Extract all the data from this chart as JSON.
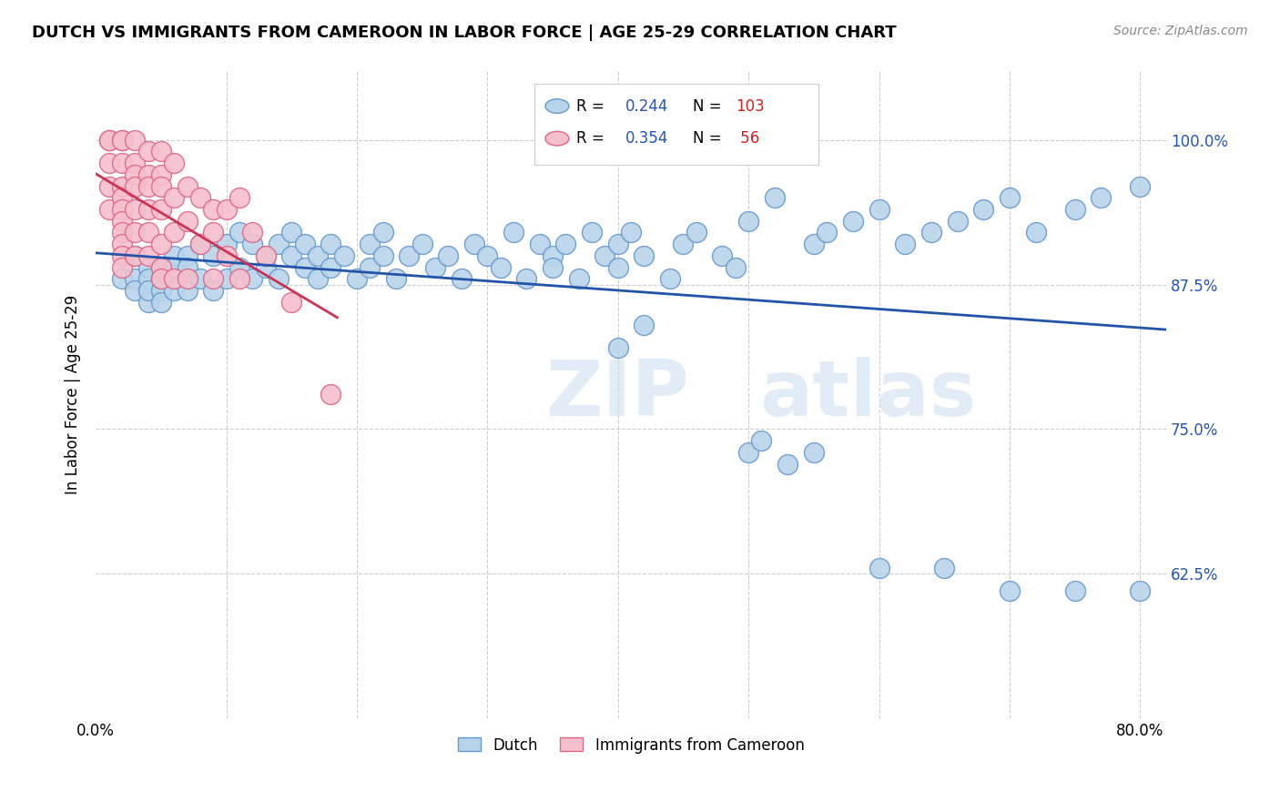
{
  "title": "DUTCH VS IMMIGRANTS FROM CAMEROON IN LABOR FORCE | AGE 25-29 CORRELATION CHART",
  "source": "Source: ZipAtlas.com",
  "ylabel": "In Labor Force | Age 25-29",
  "xlim": [
    0.0,
    0.82
  ],
  "ylim": [
    0.5,
    1.06
  ],
  "legend_r_dutch": "0.244",
  "legend_n_dutch": "103",
  "legend_r_cam": "0.354",
  "legend_n_cam": " 56",
  "dutch_color": "#b8d4ea",
  "dutch_edge_color": "#6699cc",
  "cam_color": "#f5bfcc",
  "cam_edge_color": "#dd6688",
  "trend_dutch_color": "#2255aa",
  "trend_cam_color": "#cc3355",
  "watermark_zip": "ZIP",
  "watermark_atlas": "atlas",
  "dutch_x": [
    0.02,
    0.03,
    0.03,
    0.03,
    0.04,
    0.04,
    0.04,
    0.04,
    0.04,
    0.05,
    0.05,
    0.05,
    0.05,
    0.05,
    0.06,
    0.06,
    0.06,
    0.06,
    0.07,
    0.07,
    0.07,
    0.07,
    0.08,
    0.08,
    0.09,
    0.09,
    0.1,
    0.1,
    0.11,
    0.11,
    0.12,
    0.12,
    0.13,
    0.13,
    0.14,
    0.14,
    0.15,
    0.15,
    0.16,
    0.16,
    0.17,
    0.17,
    0.18,
    0.18,
    0.19,
    0.2,
    0.21,
    0.21,
    0.22,
    0.22,
    0.23,
    0.24,
    0.25,
    0.26,
    0.27,
    0.28,
    0.29,
    0.3,
    0.31,
    0.32,
    0.33,
    0.34,
    0.35,
    0.35,
    0.36,
    0.37,
    0.38,
    0.39,
    0.4,
    0.4,
    0.41,
    0.42,
    0.44,
    0.45,
    0.46,
    0.48,
    0.49,
    0.5,
    0.52,
    0.55,
    0.56,
    0.58,
    0.6,
    0.62,
    0.64,
    0.66,
    0.68,
    0.7,
    0.72,
    0.75,
    0.77,
    0.8,
    0.4,
    0.42,
    0.5,
    0.51,
    0.53,
    0.55,
    0.6,
    0.65,
    0.7,
    0.75,
    0.8
  ],
  "dutch_y": [
    0.88,
    0.88,
    0.9,
    0.87,
    0.89,
    0.87,
    0.88,
    0.86,
    0.87,
    0.88,
    0.89,
    0.87,
    0.88,
    0.86,
    0.9,
    0.88,
    0.87,
    0.89,
    0.88,
    0.87,
    0.9,
    0.89,
    0.91,
    0.88,
    0.9,
    0.87,
    0.91,
    0.88,
    0.89,
    0.92,
    0.88,
    0.91,
    0.89,
    0.9,
    0.91,
    0.88,
    0.9,
    0.92,
    0.89,
    0.91,
    0.9,
    0.88,
    0.91,
    0.89,
    0.9,
    0.88,
    0.91,
    0.89,
    0.9,
    0.92,
    0.88,
    0.9,
    0.91,
    0.89,
    0.9,
    0.88,
    0.91,
    0.9,
    0.89,
    0.92,
    0.88,
    0.91,
    0.9,
    0.89,
    0.91,
    0.88,
    0.92,
    0.9,
    0.89,
    0.91,
    0.92,
    0.9,
    0.88,
    0.91,
    0.92,
    0.9,
    0.89,
    0.93,
    0.95,
    0.91,
    0.92,
    0.93,
    0.94,
    0.91,
    0.92,
    0.93,
    0.94,
    0.95,
    0.92,
    0.94,
    0.95,
    0.96,
    0.82,
    0.84,
    0.73,
    0.74,
    0.72,
    0.73,
    0.63,
    0.63,
    0.61,
    0.61,
    0.61
  ],
  "cam_x": [
    0.01,
    0.01,
    0.01,
    0.01,
    0.01,
    0.02,
    0.02,
    0.02,
    0.02,
    0.02,
    0.02,
    0.02,
    0.02,
    0.02,
    0.02,
    0.02,
    0.03,
    0.03,
    0.03,
    0.03,
    0.03,
    0.03,
    0.03,
    0.04,
    0.04,
    0.04,
    0.04,
    0.04,
    0.04,
    0.05,
    0.05,
    0.05,
    0.05,
    0.05,
    0.05,
    0.05,
    0.06,
    0.06,
    0.06,
    0.06,
    0.07,
    0.07,
    0.07,
    0.08,
    0.08,
    0.09,
    0.09,
    0.09,
    0.1,
    0.1,
    0.11,
    0.11,
    0.12,
    0.13,
    0.15,
    0.18
  ],
  "cam_y": [
    1.0,
    1.0,
    0.98,
    0.96,
    0.94,
    1.0,
    1.0,
    0.98,
    0.96,
    0.95,
    0.94,
    0.93,
    0.92,
    0.91,
    0.9,
    0.89,
    1.0,
    0.98,
    0.97,
    0.96,
    0.94,
    0.92,
    0.9,
    0.99,
    0.97,
    0.96,
    0.94,
    0.92,
    0.9,
    0.99,
    0.97,
    0.96,
    0.94,
    0.91,
    0.89,
    0.88,
    0.98,
    0.95,
    0.92,
    0.88,
    0.96,
    0.93,
    0.88,
    0.95,
    0.91,
    0.94,
    0.92,
    0.88,
    0.94,
    0.9,
    0.95,
    0.88,
    0.92,
    0.9,
    0.86,
    0.78
  ]
}
